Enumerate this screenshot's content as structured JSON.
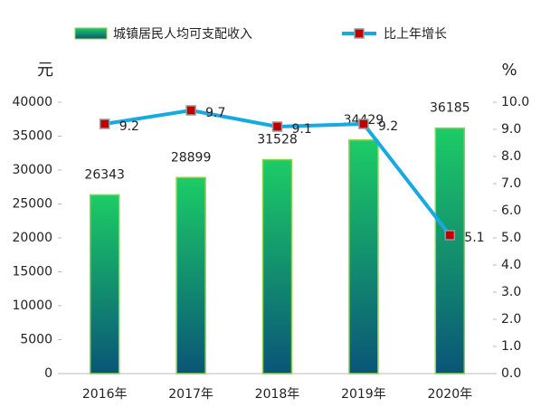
{
  "chart_data": {
    "type": "bar",
    "categories": [
      "2016年",
      "2017年",
      "2018年",
      "2019年",
      "2020年"
    ],
    "series": [
      {
        "name": "城镇居民人均可支配收入",
        "type": "bar",
        "color": "#1ccc66",
        "values": [
          26343,
          28899,
          31528,
          34429,
          36185
        ]
      },
      {
        "name": "比上年增长",
        "type": "line",
        "axis": "y2",
        "color": "#18a9e3",
        "marker_color": "#c00000",
        "values": [
          9.2,
          9.7,
          9.1,
          9.2,
          5.1
        ]
      }
    ],
    "y_label": "元",
    "y2_label": "%",
    "ylim": [
      0,
      40000
    ],
    "yticks": [
      0,
      5000,
      10000,
      15000,
      20000,
      25000,
      30000,
      35000,
      40000
    ],
    "y2lim": [
      0,
      10
    ],
    "y2ticks": [
      {
        "value": 0,
        "label": "0.0"
      },
      {
        "value": 1,
        "label": "1.0"
      },
      {
        "value": 2,
        "label": "2.0"
      },
      {
        "value": 3,
        "label": "3.0"
      },
      {
        "value": 4,
        "label": "4.0"
      },
      {
        "value": 5,
        "label": "5.0"
      },
      {
        "value": 6,
        "label": "6.0"
      },
      {
        "value": 7,
        "label": "7.0"
      },
      {
        "value": 8,
        "label": "8.0"
      },
      {
        "value": 9,
        "label": "9.0"
      },
      {
        "value": 10,
        "label": "10.0"
      }
    ]
  }
}
